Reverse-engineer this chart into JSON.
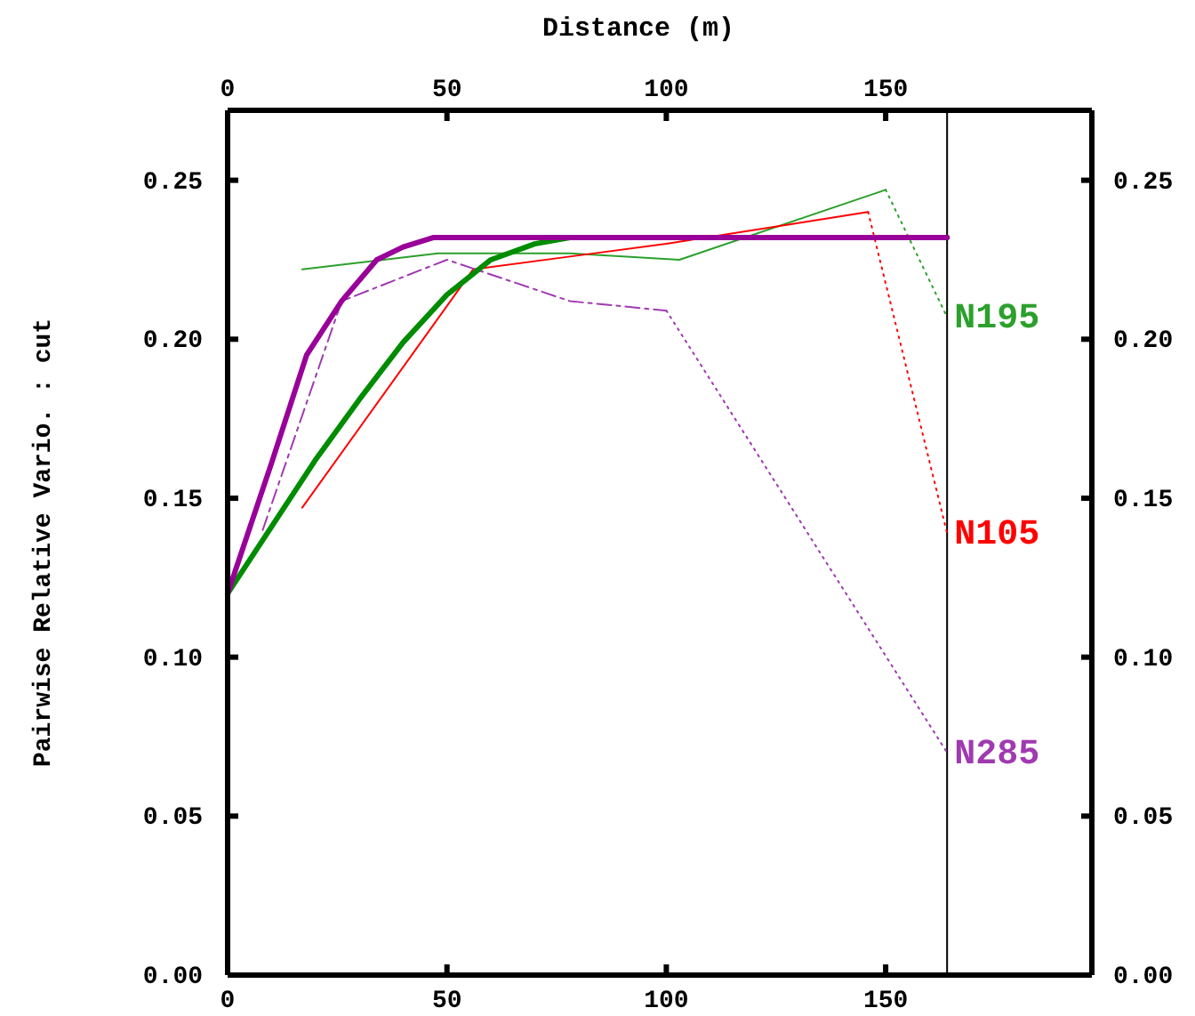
{
  "chart_data": {
    "type": "line",
    "x2label": "Distance (m)",
    "ylabel": "Pairwise Relative Vario. : cut",
    "xlim": [
      0,
      197
    ],
    "xticks": [
      0,
      50,
      100,
      150
    ],
    "x2lim": [
      0,
      197
    ],
    "x2ticks": [
      0,
      50,
      100,
      150
    ],
    "ylim": [
      0,
      0.272
    ],
    "yticks": [
      {
        "value": 0,
        "label": "0.00"
      },
      {
        "value": 0.05,
        "label": "0.05"
      },
      {
        "value": 0.1,
        "label": "0.10"
      },
      {
        "value": 0.15,
        "label": "0.15"
      },
      {
        "value": 0.2,
        "label": "0.20"
      },
      {
        "value": 0.25,
        "label": "0.25"
      }
    ],
    "y2lim": [
      0,
      0.272
    ],
    "y2ticks": [
      {
        "value": 0,
        "label": "0.00"
      },
      {
        "value": 0.05,
        "label": "0.05"
      },
      {
        "value": 0.1,
        "label": "0.10"
      },
      {
        "value": 0.15,
        "label": "0.15"
      },
      {
        "value": 0.2,
        "label": "0.20"
      },
      {
        "value": 0.25,
        "label": "0.25"
      }
    ],
    "grid": false,
    "legend": false,
    "marker": "none",
    "ref_lines": [
      {
        "axis": "x",
        "value": 164,
        "color": "#000000",
        "line_style": "solid"
      }
    ],
    "series": [
      {
        "color": "#2ca02c",
        "line_style": "solid",
        "x": [
          17,
          48,
          78,
          103,
          150
        ],
        "values": [
          0.222,
          0.227,
          0.227,
          0.225,
          0.247
        ]
      },
      {
        "name": "N195",
        "color": "#2ca02c",
        "line_style": "dotted",
        "x": [
          150,
          164
        ],
        "values": [
          0.247,
          0.207
        ]
      },
      {
        "color": "#ff0000",
        "line_style": "solid",
        "x": [
          17,
          56,
          78,
          100,
          146
        ],
        "values": [
          0.147,
          0.222,
          0.226,
          0.23,
          0.24
        ]
      },
      {
        "name": "N105",
        "color": "#ff0000",
        "line_style": "dotted",
        "x": [
          146,
          164
        ],
        "values": [
          0.24,
          0.139
        ]
      },
      {
        "color": "#a03ab0",
        "line_style": "dashdot",
        "x": [
          8,
          26,
          50,
          78,
          100
        ],
        "values": [
          0.14,
          0.212,
          0.225,
          0.212,
          0.209
        ]
      },
      {
        "name": "N285",
        "color": "#a03ab0",
        "line_style": "dotted",
        "x": [
          100,
          164
        ],
        "values": [
          0.209,
          0.07
        ]
      },
      {
        "type": "line",
        "color": "#008c00",
        "line_style": "solid",
        "x": [
          0,
          10,
          20,
          30,
          40,
          50,
          60,
          70,
          78,
          164
        ],
        "values": [
          0.12,
          0.141,
          0.162,
          0.181,
          0.199,
          0.214,
          0.225,
          0.23,
          0.232,
          0.232
        ]
      },
      {
        "type": "line",
        "color": "#990099",
        "line_style": "solid",
        "x": [
          0,
          10,
          18,
          26,
          34,
          40,
          47,
          164
        ],
        "values": [
          0.12,
          0.161,
          0.195,
          0.212,
          0.225,
          0.229,
          0.232,
          0.232
        ]
      }
    ]
  }
}
